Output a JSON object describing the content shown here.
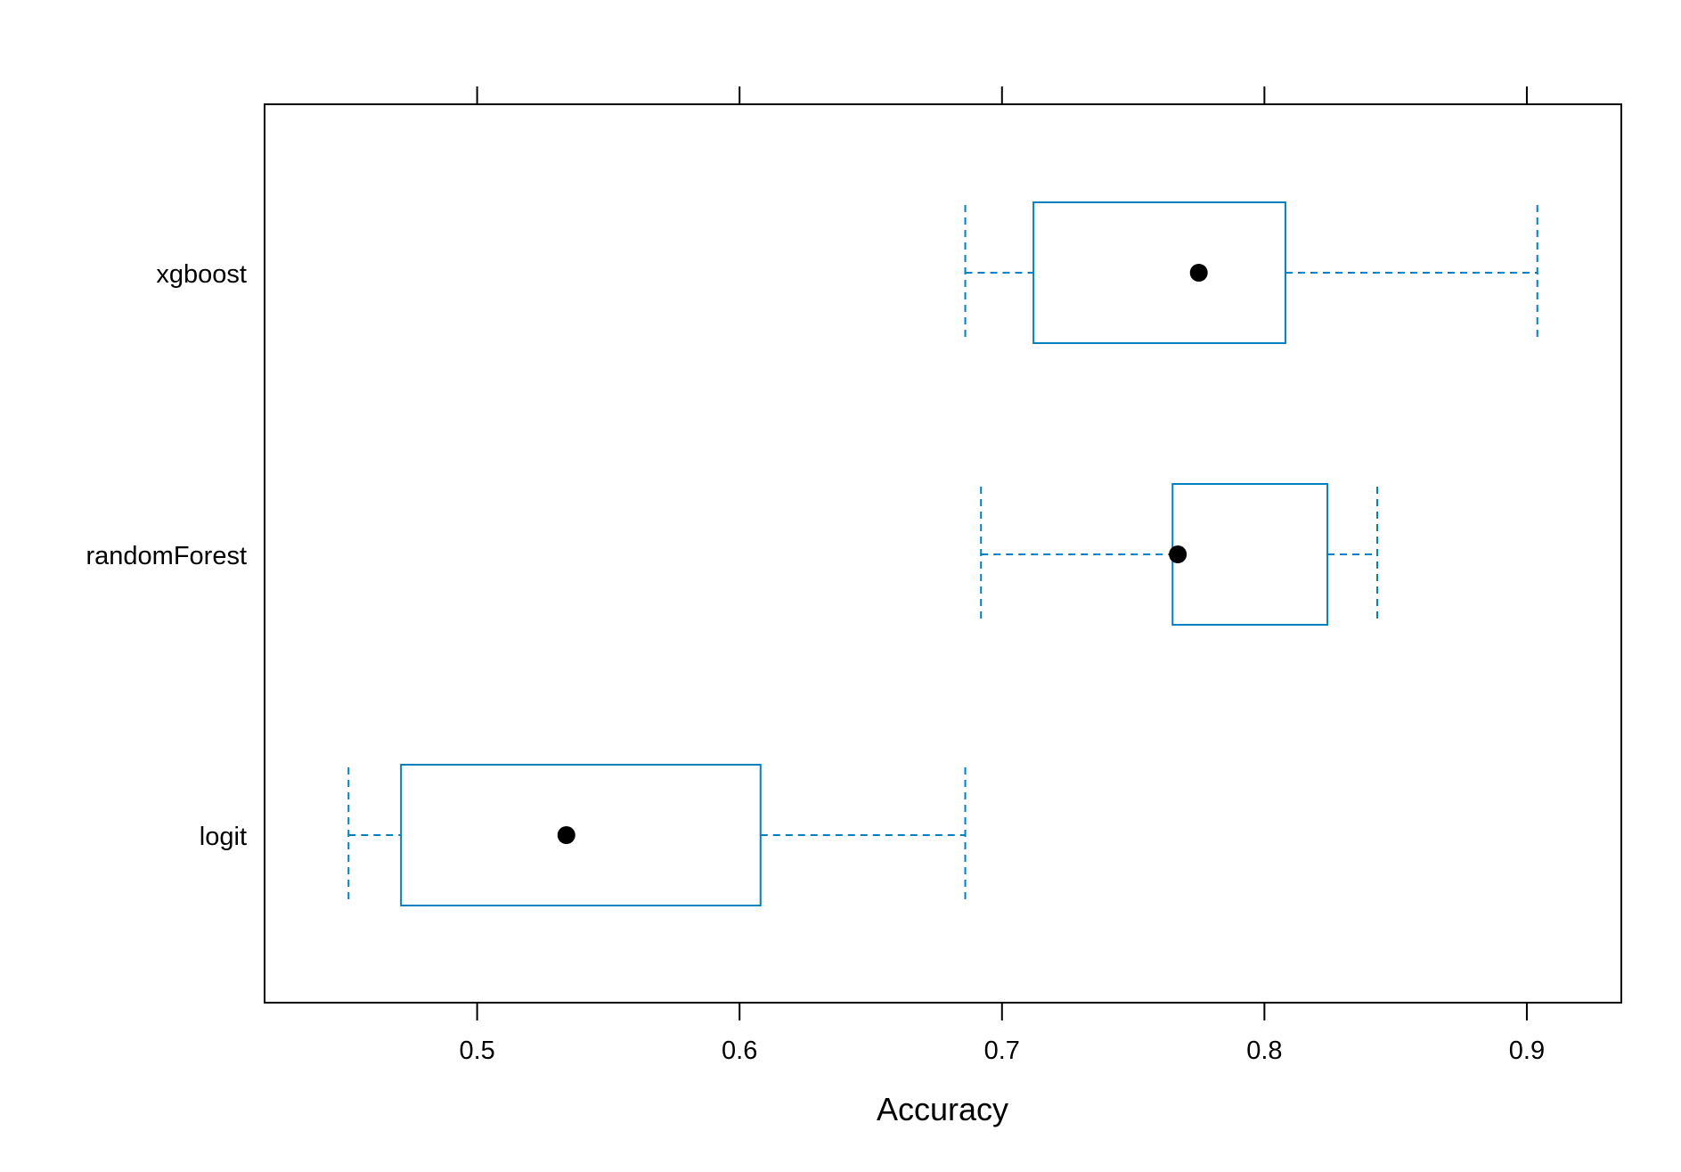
{
  "chart_data": {
    "type": "boxplot",
    "orientation": "horizontal",
    "title": "",
    "xlabel": "Accuracy",
    "ylabel": "",
    "xlim": [
      0.419,
      0.936
    ],
    "x_ticks": [
      0.5,
      0.6,
      0.7,
      0.8,
      0.9
    ],
    "x_tick_labels": [
      "0.5",
      "0.6",
      "0.7",
      "0.8",
      "0.9"
    ],
    "x_ticks_mirrored_top": true,
    "grid": false,
    "legend": "none",
    "categories": [
      "xgboost",
      "randomForest",
      "logit"
    ],
    "series": [
      {
        "category": "xgboost",
        "min": 0.686,
        "q1": 0.712,
        "median": 0.775,
        "q3": 0.808,
        "max": 0.904
      },
      {
        "category": "randomForest",
        "min": 0.692,
        "q1": 0.765,
        "median": 0.767,
        "q3": 0.824,
        "max": 0.843
      },
      {
        "category": "logit",
        "min": 0.451,
        "q1": 0.471,
        "median": 0.534,
        "q3": 0.608,
        "max": 0.686
      }
    ],
    "colors": {
      "box": "#0080C0",
      "whisker": "#0080C0",
      "median": "#000000",
      "frame": "#000000"
    }
  }
}
